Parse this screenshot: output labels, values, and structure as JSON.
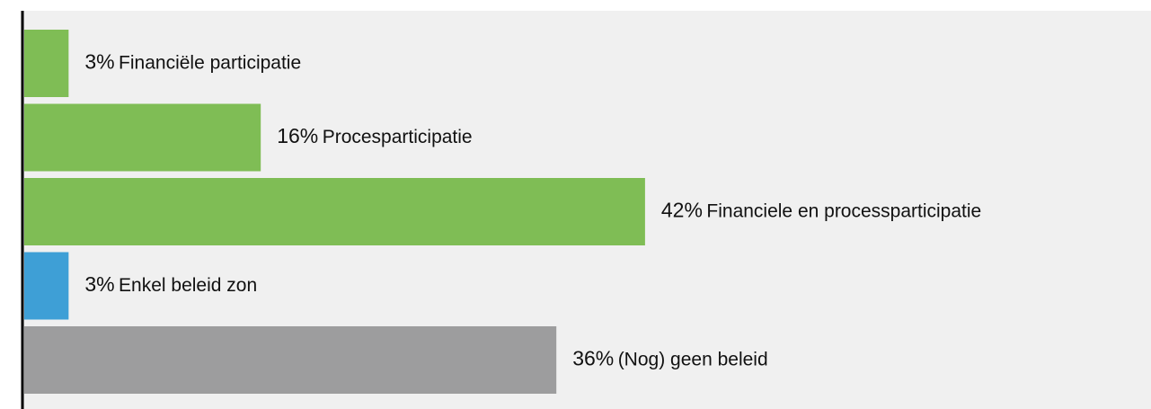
{
  "chart_data": {
    "type": "bar",
    "orientation": "horizontal",
    "categories": [
      "Financiële participatie",
      "Procesparticipatie",
      "Financiele en processparticipatie",
      "Enkel beleid zon",
      "(Nog) geen beleid"
    ],
    "values": [
      3,
      16,
      42,
      3,
      36
    ],
    "value_labels": [
      "3%",
      "16%",
      "42%",
      "3%",
      "36%"
    ],
    "colors": [
      "#7fbd55",
      "#7fbd55",
      "#7fbd55",
      "#3e9fd6",
      "#9d9d9e"
    ]
  }
}
